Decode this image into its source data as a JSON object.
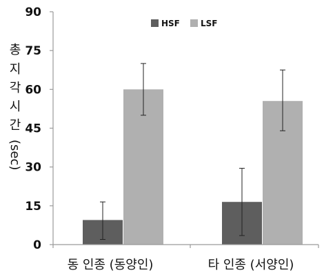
{
  "chart_data": {
    "type": "bar",
    "categories": [
      "동 인종 (동양인)",
      "타 인종 (서양인)"
    ],
    "series": [
      {
        "name": "HSF",
        "values": [
          9.5,
          16.5
        ],
        "error_low": [
          2,
          3.5
        ],
        "error_high": [
          16.5,
          29.5
        ]
      },
      {
        "name": "LSF",
        "values": [
          60,
          55.5
        ],
        "error_low": [
          50,
          44
        ],
        "error_high": [
          70,
          67.5
        ]
      }
    ],
    "title": "",
    "xlabel": "",
    "ylabel": [
      "총",
      "지",
      "각",
      "시",
      "간",
      "(sec)"
    ],
    "ylim": [
      0,
      90
    ],
    "yticks": [
      "0",
      "15",
      "30",
      "45",
      "60",
      "75",
      "90"
    ],
    "grid": false,
    "legend_position": "top-center"
  },
  "colors": {
    "HSF": "#5e5e5e",
    "LSF": "#b0b0b0",
    "axis": "#9a9a9a",
    "error": "#222222"
  }
}
